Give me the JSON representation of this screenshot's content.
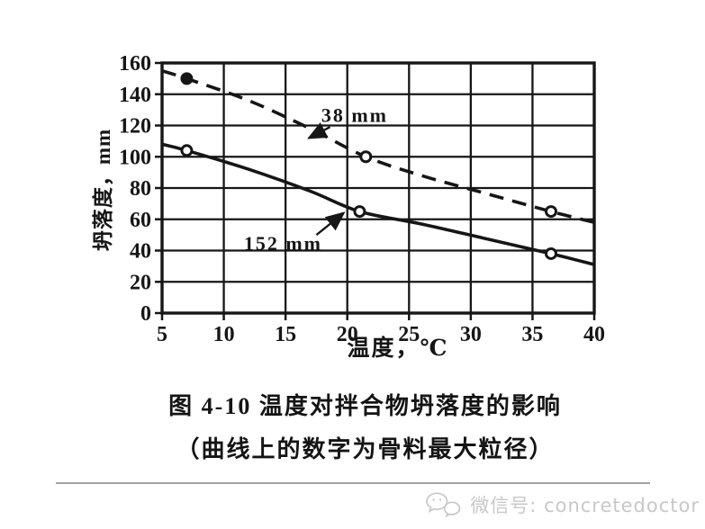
{
  "figure_caption": {
    "line1": "图 4-10  温度对拌合物坍落度的影响",
    "line2": "（曲线上的数字为骨料最大粒径）"
  },
  "watermark": {
    "icon": "wechat-icon",
    "label": "微信号: concretedoctor"
  },
  "colors": {
    "ink": "#161616",
    "watermark_gray": "#c8c8c8",
    "divider_gray": "#a3a3a3"
  },
  "chart_data": {
    "type": "line",
    "title": "",
    "xlabel": "温度，℃",
    "ylabel": "坍落度，mm",
    "xlim": [
      5,
      40
    ],
    "ylim": [
      0,
      160
    ],
    "xticks": [
      5,
      10,
      15,
      20,
      25,
      30,
      35,
      40
    ],
    "yticks": [
      0,
      20,
      40,
      60,
      80,
      100,
      120,
      140,
      160
    ],
    "grid": true,
    "legend_position": "none",
    "series": [
      {
        "name": "38 mm",
        "line_style": "dashed",
        "marker_points": [
          {
            "x": 7,
            "y": 150,
            "filled": true
          },
          {
            "x": 21.5,
            "y": 100,
            "filled": false
          },
          {
            "x": 36.5,
            "y": 65,
            "filled": false
          }
        ],
        "curve": [
          [
            5,
            155
          ],
          [
            7,
            150
          ],
          [
            12,
            136
          ],
          [
            17,
            118
          ],
          [
            21.5,
            100
          ],
          [
            26,
            88
          ],
          [
            31,
            77
          ],
          [
            36.5,
            65
          ],
          [
            40,
            58
          ]
        ]
      },
      {
        "name": "152 mm",
        "line_style": "solid",
        "marker_points": [
          {
            "x": 7,
            "y": 104,
            "filled": false
          },
          {
            "x": 21,
            "y": 65,
            "filled": false
          },
          {
            "x": 36.5,
            "y": 38,
            "filled": false
          }
        ],
        "curve": [
          [
            5,
            108
          ],
          [
            7,
            104
          ],
          [
            12,
            92
          ],
          [
            17,
            78
          ],
          [
            21,
            65
          ],
          [
            26,
            57
          ],
          [
            31,
            48
          ],
          [
            36.5,
            38
          ],
          [
            40,
            31
          ]
        ]
      }
    ],
    "annotations": [
      {
        "label": "38 mm",
        "text_x": 20.6,
        "text_y": 127,
        "arrow_from_x": 18.6,
        "arrow_from_y": 119,
        "arrow_to_x": 16.9,
        "arrow_to_y": 112
      },
      {
        "label": "152 mm",
        "text_x": 14.8,
        "text_y": 45,
        "arrow_from_x": 17.5,
        "arrow_from_y": 50,
        "arrow_to_x": 19.7,
        "arrow_to_y": 64
      }
    ]
  }
}
